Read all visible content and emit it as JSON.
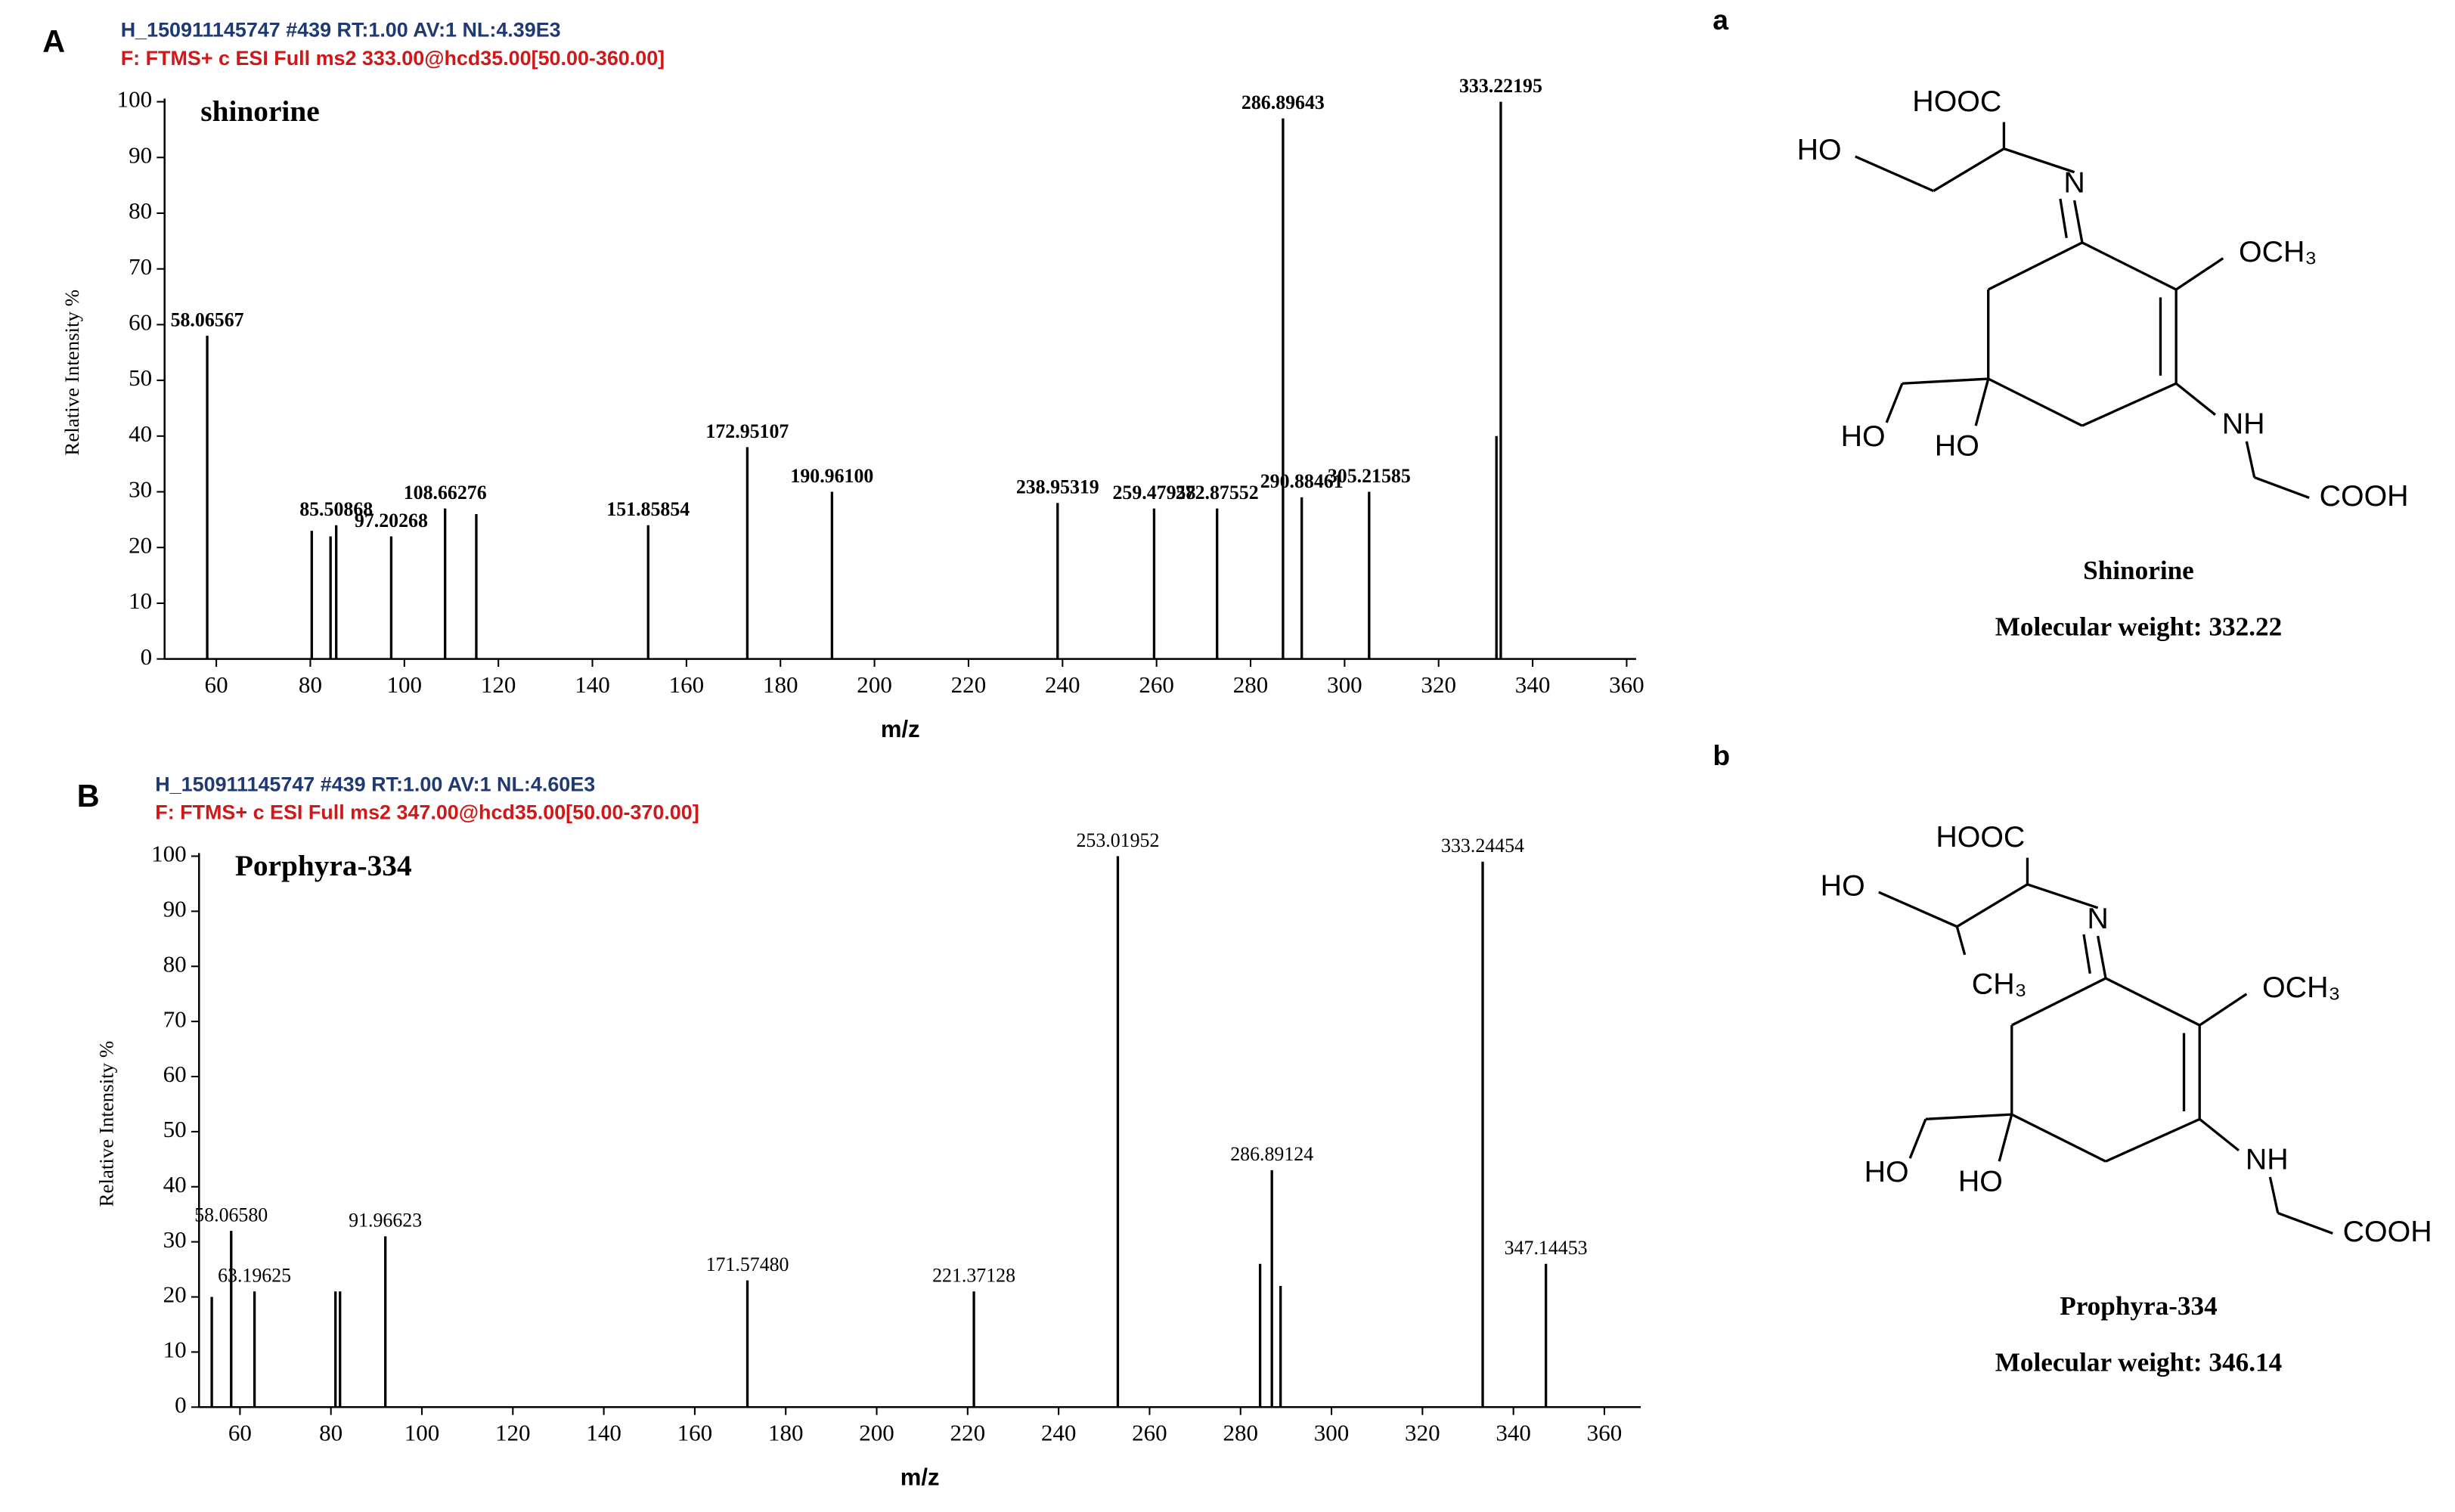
{
  "chart_data": [
    {
      "type": "spectrum",
      "panel": "A",
      "title": "shinorine",
      "header": "H_150911145747 #439  RT:1.00  AV:1  NL:4.39E3",
      "filter": "F: FTMS+ c ESI Full ms2 333.00@hcd35.00[50.00-360.00]",
      "x_label": "m/z",
      "y_label": "Relative  Intensity  %",
      "x": [
        58.06567,
        80.3,
        84.3,
        85.50868,
        97.20268,
        108.66276,
        115.3,
        151.85854,
        172.95107,
        190.961,
        238.95319,
        259.47958,
        272.87552,
        286.89643,
        290.88461,
        305.21585,
        332.3,
        333.22195
      ],
      "values": [
        58,
        23,
        22,
        24,
        22,
        27,
        26,
        24,
        38,
        30,
        28,
        27,
        27,
        97,
        29,
        30,
        40,
        100
      ],
      "value_labels": [
        "58.06567",
        null,
        null,
        "85.50868",
        "97.20268",
        "108.66276",
        null,
        "151.85854",
        "172.95107",
        "190.96100",
        "238.95319",
        "259.47958",
        "272.87552",
        "286.89643",
        "290.88461",
        "305.21585",
        null,
        "333.22195"
      ],
      "color": "#000000",
      "xlim": [
        49,
        362
      ],
      "xticks": [
        60,
        80,
        100,
        120,
        140,
        160,
        180,
        200,
        220,
        240,
        260,
        280,
        300,
        320,
        340,
        360
      ],
      "ylim": [
        0,
        100
      ],
      "yticks": [
        0,
        10,
        20,
        30,
        40,
        50,
        60,
        70,
        80,
        90,
        100
      ]
    },
    {
      "type": "spectrum",
      "panel": "B",
      "title": "Porphyra-334",
      "header": "H_150911145747 #439  RT:1.00  AV:1  NL:4.60E3",
      "filter": "F: FTMS+ c ESI Full ms2 347.00@hcd35.00[50.00-370.00]",
      "x_label": "m/z",
      "y_label": "Relative  Intensity  %",
      "x": [
        53.8,
        58.0658,
        63.19625,
        81.0,
        82.0,
        91.96623,
        171.5748,
        221.37128,
        253.01952,
        284.3,
        286.89124,
        288.8,
        333.24454,
        347.14453
      ],
      "values": [
        20,
        32,
        21,
        21,
        21,
        31,
        23,
        21,
        100,
        26,
        43,
        22,
        99,
        26
      ],
      "value_labels": [
        null,
        "58.06580",
        "63.19625",
        null,
        null,
        "91.96623",
        "171.57480",
        "221.37128",
        "253.01952",
        null,
        "286.89124",
        null,
        "333.24454",
        "347.14453"
      ],
      "color": "#000000",
      "xlim": [
        51,
        368
      ],
      "xticks": [
        60,
        80,
        100,
        120,
        140,
        160,
        180,
        200,
        220,
        240,
        260,
        280,
        300,
        320,
        340,
        360
      ],
      "ylim": [
        0,
        100
      ],
      "yticks": [
        0,
        10,
        20,
        30,
        40,
        50,
        60,
        70,
        80,
        90,
        100
      ]
    }
  ],
  "structures": [
    {
      "letter": "a",
      "labels": [
        "HOOC",
        "HO",
        "N",
        "OCH₃",
        "NH",
        "COOH",
        "HO",
        "HO"
      ],
      "name": "Shinorine",
      "mw": "Molecular weight: 332.22"
    },
    {
      "letter": "b",
      "labels": [
        "HOOC",
        "HO",
        "N",
        "OCH₃",
        "NH",
        "COOH",
        "HO",
        "HO",
        "CH₃"
      ],
      "name": "Prophyra-334",
      "mw": "Molecular weight: 346.14"
    }
  ]
}
